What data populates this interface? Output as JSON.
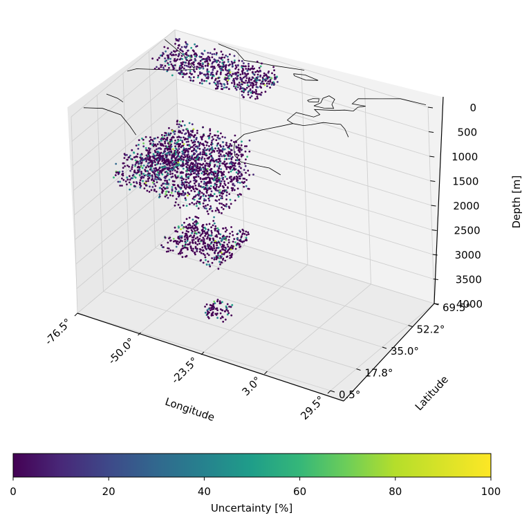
{
  "chart_data": {
    "type": "scatter",
    "subtype": "3d-scatter",
    "title": "",
    "xlabel": "Longitude",
    "ylabel": "Latitude",
    "zlabel": "Depth [m]",
    "xlim": [
      -76.5,
      29.5
    ],
    "ylim": [
      0.5,
      69.5
    ],
    "zlim": [
      4000,
      0
    ],
    "z_inverted": true,
    "x_ticks": [
      "-76.5°",
      "-50.0°",
      "-23.5°",
      "3.0°",
      "29.5°"
    ],
    "y_ticks": [
      "0.5°",
      "17.8°",
      "35.0°",
      "52.2°",
      "69.5°"
    ],
    "z_ticks": [
      "0",
      "500",
      "1000",
      "1500",
      "2000",
      "2500",
      "3000",
      "3500",
      "4000"
    ],
    "colorbar": {
      "label": "Uncertainty [%]",
      "colormap": "viridis",
      "range": [
        0,
        100
      ],
      "ticks": [
        "0",
        "20",
        "40",
        "60",
        "80",
        "100"
      ]
    },
    "grid": true,
    "coastlines": true,
    "clusters": [
      {
        "lon": [
          -74,
          -30
        ],
        "lat": [
          50,
          66
        ],
        "depth": [
          0,
          300
        ],
        "uncertainty_typical": 10
      },
      {
        "lon": [
          -60,
          -30
        ],
        "lat": [
          20,
          45
        ],
        "depth": [
          900,
          1300
        ],
        "uncertainty_typical": 8
      },
      {
        "lon": [
          -70,
          -25
        ],
        "lat": [
          15,
          40
        ],
        "depth": [
          1200,
          1700
        ],
        "uncertainty_typical": 8
      },
      {
        "lon": [
          -40,
          -15
        ],
        "lat": [
          0,
          20
        ],
        "depth": [
          1900,
          2200
        ],
        "uncertainty_typical": 5
      },
      {
        "lon": [
          -25,
          -15
        ],
        "lat": [
          0,
          8
        ],
        "depth": [
          3100,
          3300
        ],
        "uncertainty_typical": 5
      }
    ]
  }
}
